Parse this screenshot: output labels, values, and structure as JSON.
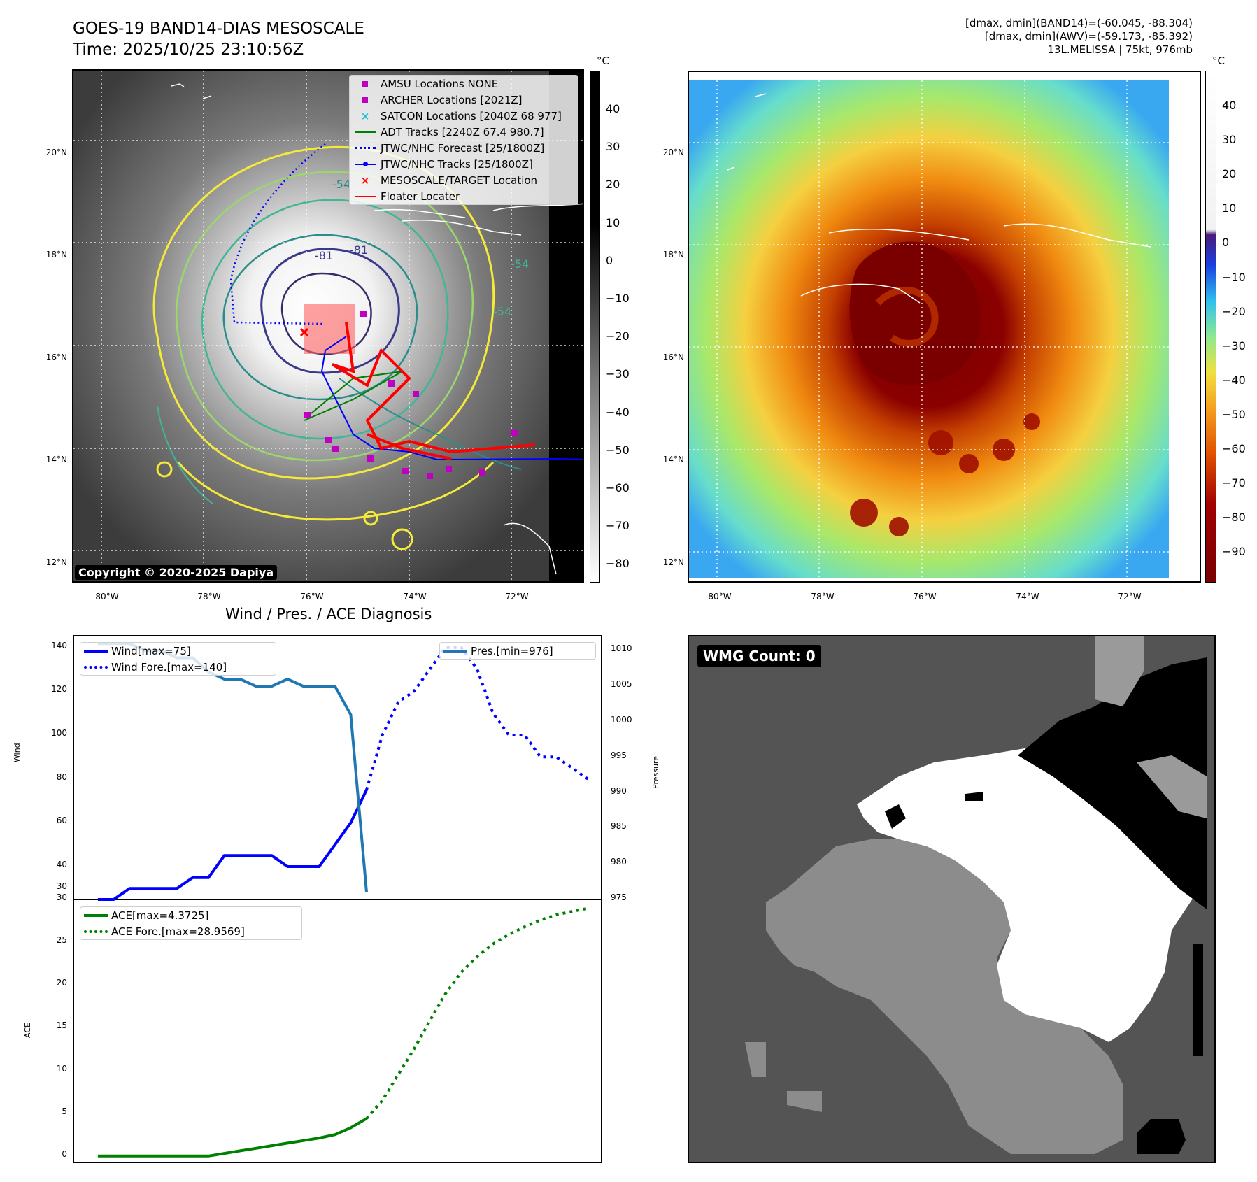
{
  "header": {
    "title": "GOES-19 BAND14-DIAS MESOSCALE",
    "time": "Time: 2025/10/25 23:10:56Z",
    "info_line1": "[dmax, dmin](BAND14)=(-60.045, -88.304)",
    "info_line2": "[dmax, dmin](AWV)=(-59.173, -85.392)",
    "info_line3": "13L.MELISSA | 75kt, 976mb"
  },
  "maps": {
    "lat_labels": [
      "20°N",
      "18°N",
      "16°N",
      "14°N",
      "12°N"
    ],
    "lon_labels": [
      "80°W",
      "78°W",
      "76°W",
      "74°W",
      "72°W"
    ],
    "copyright": "Copyright © 2020-2025 Dapiya",
    "contour_labels": [
      "-54",
      "-81",
      "-81",
      "-54",
      "-54"
    ],
    "legend": [
      {
        "label": "AMSU Locations NONE",
        "symbol": "square",
        "color": "#c000c0"
      },
      {
        "label": "ARCHER Locations [2021Z]",
        "symbol": "square",
        "color": "#c000c0"
      },
      {
        "label": "SATCON Locations [2040Z 68 977]",
        "symbol": "x",
        "color": "#17becf"
      },
      {
        "label": "ADT Tracks [2240Z 67.4 980.7]",
        "symbol": "line",
        "color": "#008000"
      },
      {
        "label": "JTWC/NHC Forecast [25/1800Z]",
        "symbol": "dotted",
        "color": "#0000ff"
      },
      {
        "label": "JTWC/NHC Tracks [25/1800Z]",
        "symbol": "line-dot",
        "color": "#0000ff"
      },
      {
        "label": "MESOSCALE/TARGET Location",
        "symbol": "x",
        "color": "#ff0000"
      },
      {
        "label": "Floater Locater",
        "symbol": "line",
        "color": "#ff0000"
      }
    ]
  },
  "colorbar_left": {
    "unit": "°C",
    "ticks": [
      "40",
      "30",
      "20",
      "10",
      "0",
      "−10",
      "−20",
      "−30",
      "−40",
      "−50",
      "−60",
      "−70",
      "−80"
    ]
  },
  "colorbar_right": {
    "unit": "°C",
    "ticks": [
      "40",
      "30",
      "20",
      "10",
      "0",
      "−10",
      "−20",
      "−30",
      "−40",
      "−50",
      "−60",
      "−70",
      "−80",
      "−90"
    ]
  },
  "diagnosis": {
    "title": "Wind / Pres. / ACE Diagnosis",
    "wind_axis_label": "Wind",
    "pressure_axis_label": "Pressure",
    "ace_axis_label": "ACE",
    "wind_ticks": [
      "140",
      "120",
      "100",
      "80",
      "60",
      "40",
      "30"
    ],
    "pressure_ticks": [
      "1010",
      "1005",
      "1000",
      "995",
      "990",
      "985",
      "980",
      "975"
    ],
    "ace_ticks": [
      "30",
      "25",
      "20",
      "15",
      "10",
      "5",
      "0"
    ],
    "legend_wind": "Wind[max=75]",
    "legend_wind_fore": "Wind Fore.[max=140]",
    "legend_pres": "Pres.[min=976]",
    "legend_ace": "ACE[max=4.3725]",
    "legend_ace_fore": "ACE Fore.[max=28.9569]"
  },
  "wmg": {
    "label": "WMG Count: 0"
  },
  "chart_data": [
    {
      "type": "line",
      "series": [
        {
          "name": "Wind[max=75]",
          "x": [
            0,
            1,
            2,
            3,
            4,
            5,
            6,
            7,
            8,
            9,
            10,
            11,
            12,
            13,
            14,
            15,
            16,
            17
          ],
          "values": [
            25,
            25,
            30,
            30,
            30,
            30,
            35,
            35,
            45,
            45,
            45,
            45,
            40,
            40,
            40,
            50,
            60,
            75
          ],
          "color": "#0000ff"
        },
        {
          "name": "Wind Fore.[max=140]",
          "x": [
            17,
            18,
            19,
            20,
            21,
            22,
            23,
            24,
            25,
            26,
            27,
            28,
            29,
            30,
            31
          ],
          "values": [
            75,
            100,
            115,
            120,
            130,
            140,
            140,
            130,
            110,
            100,
            100,
            90,
            90,
            85,
            80
          ],
          "color": "#0000ff",
          "style": "dotted"
        },
        {
          "name": "Pres.[min=976]",
          "x": [
            0,
            1,
            2,
            3,
            4,
            5,
            6,
            7,
            8,
            9,
            10,
            11,
            12,
            13,
            14,
            15,
            16,
            17
          ],
          "values": [
            1011,
            1011,
            1011,
            1010,
            1010,
            1009,
            1009,
            1007,
            1006,
            1006,
            1005,
            1005,
            1006,
            1005,
            1005,
            1005,
            1001,
            976
          ],
          "color": "#1f77b4",
          "axis": "right"
        }
      ],
      "ylim": [
        25,
        145
      ],
      "ylim_right": [
        975,
        1012
      ]
    },
    {
      "type": "line",
      "series": [
        {
          "name": "ACE[max=4.3725]",
          "x": [
            0,
            1,
            2,
            3,
            4,
            5,
            6,
            7,
            8,
            9,
            10,
            11,
            12,
            13,
            14,
            15,
            16,
            17
          ],
          "values": [
            0,
            0,
            0,
            0,
            0,
            0,
            0,
            0,
            0.3,
            0.6,
            0.9,
            1.2,
            1.5,
            1.8,
            2.1,
            2.5,
            3.3,
            4.37
          ],
          "color": "#008000"
        },
        {
          "name": "ACE Fore.[max=28.9569]",
          "x": [
            17,
            18,
            19,
            20,
            21,
            22,
            23,
            24,
            25,
            26,
            27,
            28,
            29,
            30,
            31
          ],
          "values": [
            4.37,
            6.5,
            9.5,
            12.5,
            15.8,
            19,
            21.5,
            23.3,
            24.8,
            25.9,
            26.8,
            27.6,
            28.2,
            28.6,
            28.96
          ],
          "color": "#008000",
          "style": "dotted"
        }
      ],
      "ylim": [
        -1,
        30
      ]
    }
  ]
}
